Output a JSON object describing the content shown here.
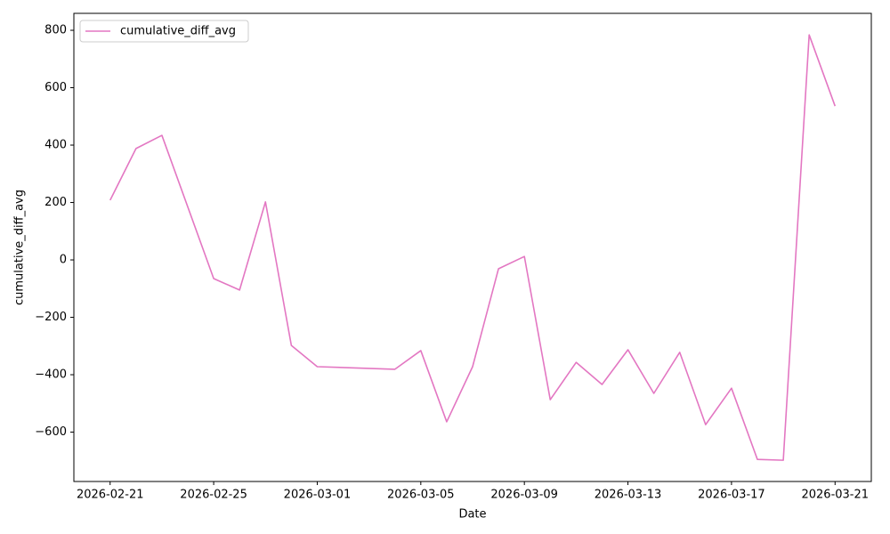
{
  "chart_data": {
    "type": "line",
    "xlabel": "Date",
    "ylabel": "cumulative_diff_avg",
    "x": [
      "2026-02-21",
      "2026-02-22",
      "2026-02-23",
      "2026-02-25",
      "2026-02-26",
      "2026-02-27",
      "2026-02-28",
      "2026-03-01",
      "2026-03-04",
      "2026-03-05",
      "2026-03-06",
      "2026-03-07",
      "2026-03-08",
      "2026-03-09",
      "2026-03-10",
      "2026-03-11",
      "2026-03-12",
      "2026-03-13",
      "2026-03-14",
      "2026-03-15",
      "2026-03-16",
      "2026-03-17",
      "2026-03-18",
      "2026-03-19",
      "2026-03-20",
      "2026-03-21"
    ],
    "series": [
      {
        "name": "cumulative_diff_avg",
        "color": "#e377c2",
        "values": [
          208,
          388,
          434,
          -65,
          -105,
          202,
          -298,
          -372,
          -381,
          -316,
          -564,
          -372,
          -31,
          12,
          -487,
          -357,
          -434,
          -313,
          -465,
          -322,
          -574,
          -447,
          -695,
          -698,
          784,
          536
        ]
      }
    ],
    "xlim": [
      "2026-02-19T14:24",
      "2026-03-22T09:36"
    ],
    "xticks": [
      "2026-02-21",
      "2026-02-25",
      "2026-03-01",
      "2026-03-05",
      "2026-03-09",
      "2026-03-13",
      "2026-03-17",
      "2026-03-21"
    ],
    "ylim": [
      -772,
      859
    ],
    "yticks": [
      {
        "value": -600,
        "label": "−600"
      },
      {
        "value": -400,
        "label": "−400"
      },
      {
        "value": -200,
        "label": "−200"
      },
      0,
      200,
      400,
      600,
      800
    ],
    "legend": "upper left",
    "grid": false
  }
}
